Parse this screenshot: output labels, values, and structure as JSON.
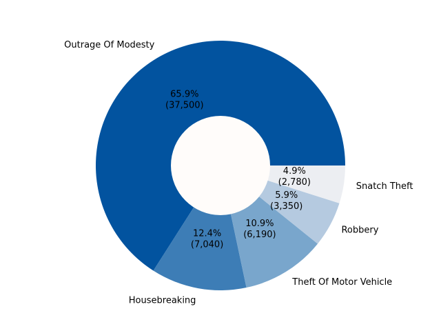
{
  "chart_data": {
    "type": "pie",
    "donut": true,
    "start_angle_deg": 0,
    "direction": "counterclockwise",
    "center_hole_color": "#fffcfa",
    "slices": [
      {
        "label": "Outrage Of Modesty",
        "value": 37500,
        "percent": "65.9%",
        "value_label": "(37,500)",
        "color": "#02539f"
      },
      {
        "label": "Housebreaking",
        "value": 7040,
        "percent": "12.4%",
        "value_label": "(7,040)",
        "color": "#3d7db6"
      },
      {
        "label": "Theft Of Motor Vehicle",
        "value": 6190,
        "percent": "10.9%",
        "value_label": "(6,190)",
        "color": "#79a6cc"
      },
      {
        "label": "Robbery",
        "value": 3350,
        "percent": "5.9%",
        "value_label": "(3,350)",
        "color": "#b5cae0"
      },
      {
        "label": "Snatch Theft",
        "value": 2780,
        "percent": "4.9%",
        "value_label": "(2,780)",
        "color": "#eceef2"
      }
    ]
  }
}
